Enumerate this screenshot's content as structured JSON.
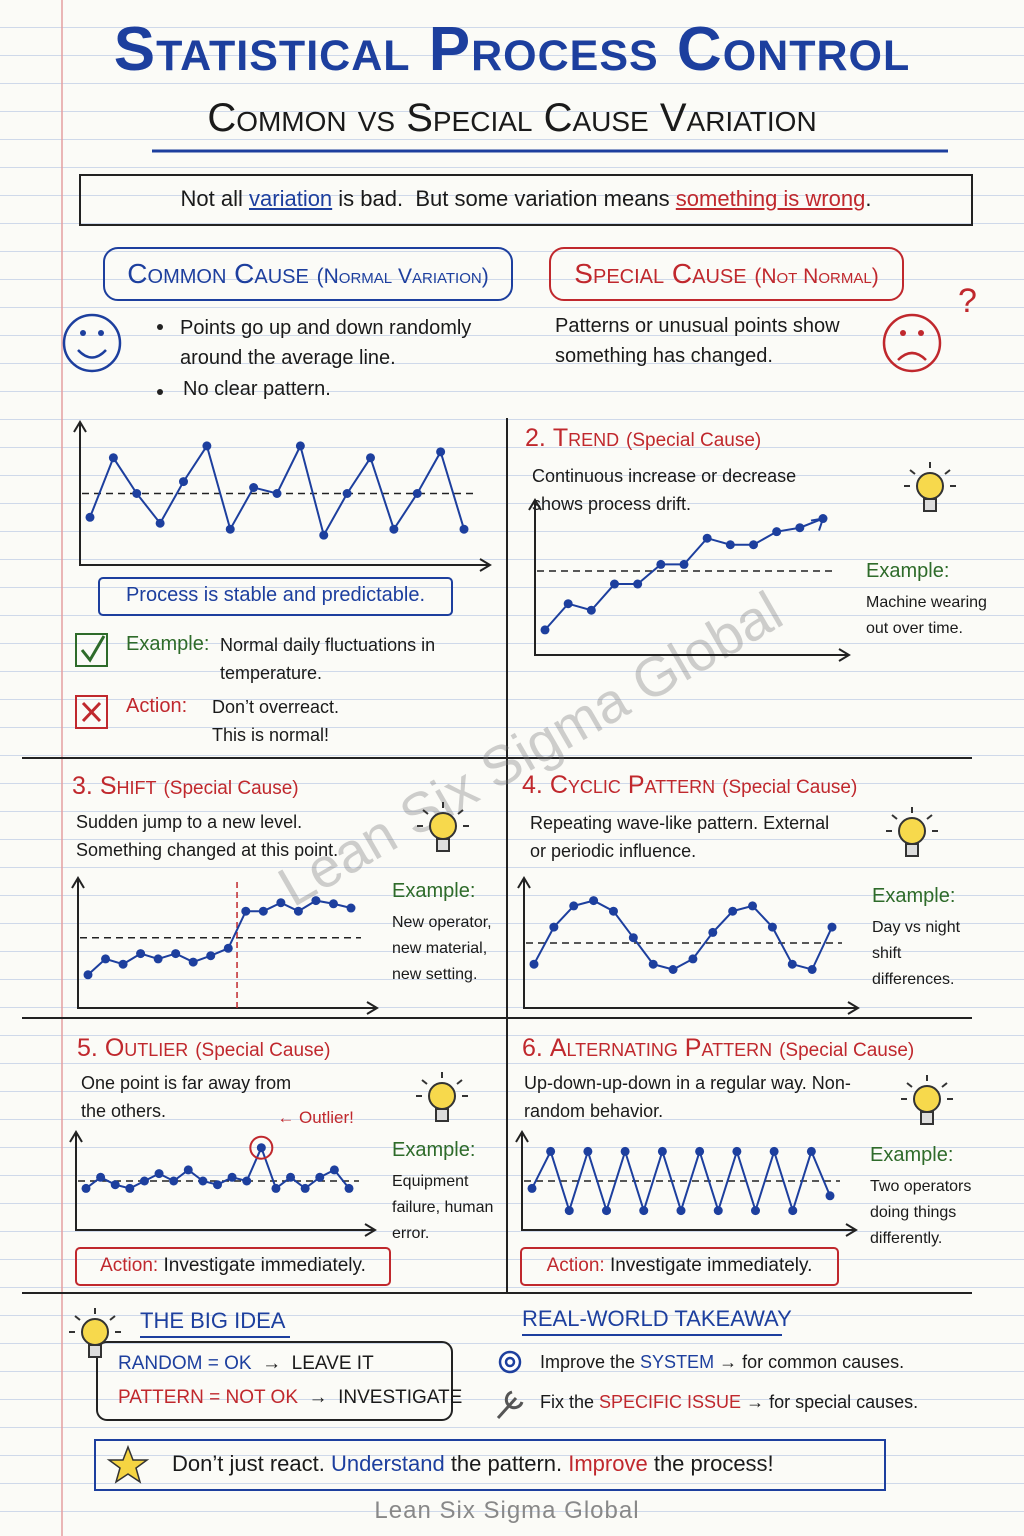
{
  "header": {
    "title": "Statistical Process Control",
    "subtitle": "Common vs Special Cause Variation"
  },
  "intro": [
    {
      "text": "Not all "
    },
    {
      "text": "variation",
      "color": "#1d3f9e",
      "underline": true
    },
    {
      "text": " is bad.  But some variation means "
    },
    {
      "text": "something is wrong",
      "color": "#c0282d",
      "underline": true
    },
    {
      "text": "."
    }
  ],
  "common_cause": {
    "heading": "Common Cause",
    "note": "(Normal Variation)",
    "bullets": [
      "Points go up and down randomly around the average line.",
      "No clear pattern."
    ],
    "chart": {
      "ylim": [
        0,
        10
      ],
      "average": 5,
      "values": [
        3,
        8,
        5,
        2.5,
        6,
        9,
        2,
        5.5,
        5,
        9,
        1.5,
        5,
        8,
        2,
        5,
        8.5,
        2
      ]
    },
    "caption": "Process is stable and predictable.",
    "example_label": "Example:",
    "example": "Normal daily fluctuations in temperature.",
    "action_label": "Action:",
    "action": "Don’t overreact. This is normal!"
  },
  "special_cause": {
    "heading": "Special Cause",
    "note": "(Not Normal)",
    "text": "Patterns or unusual points show something has changed."
  },
  "patterns": [
    {
      "number": "2.",
      "name": "Trend",
      "tag": "(Special Cause)",
      "description": "Continuous increase or decrease shows process drift.",
      "example_label": "Example:",
      "example": "Machine wearing out over time.",
      "chart": {
        "ylim": [
          0,
          10
        ],
        "average": 5.5,
        "values": [
          1,
          3,
          2.5,
          4.5,
          4.5,
          6,
          6,
          8,
          7.5,
          7.5,
          8.5,
          8.8,
          9.5
        ]
      }
    },
    {
      "number": "3.",
      "name": "Shift",
      "tag": "(Special Cause)",
      "description": "Sudden jump to a new level. Something changed at this point.",
      "example_label": "Example:",
      "example": "New operator, new material, new setting.",
      "chart": {
        "ylim": [
          0,
          10
        ],
        "average": 5.5,
        "change_point": 8.5,
        "values": [
          2,
          3.5,
          3,
          4,
          3.5,
          4,
          3.2,
          3.8,
          4.5,
          8,
          8,
          8.8,
          8,
          9,
          8.7,
          8.3
        ]
      }
    },
    {
      "number": "4.",
      "name": "Cyclic Pattern",
      "tag": "(Special Cause)",
      "description": "Repeating wave-like pattern. External or periodic influence.",
      "example_label": "Example:",
      "example": "Day vs night shift differences.",
      "chart": {
        "ylim": [
          0,
          10
        ],
        "average": 5,
        "values": [
          3,
          6.5,
          8.5,
          9,
          8,
          5.5,
          3,
          2.5,
          3.5,
          6,
          8,
          8.5,
          6.5,
          3,
          2.5,
          6.5
        ]
      }
    },
    {
      "number": "5.",
      "name": "Outlier",
      "tag": "(Special Cause)",
      "description": "One point is far away from the others.",
      "example_label": "Example:",
      "example": "Equipment failure, human error.",
      "chart": {
        "ylim": [
          0,
          10
        ],
        "average": 5,
        "outlier_index": 12,
        "values": [
          4,
          5.5,
          4.5,
          4,
          5,
          6,
          5,
          6.5,
          5,
          4.5,
          5.5,
          5,
          9.5,
          4,
          5.5,
          4,
          5.5,
          6.5,
          4
        ]
      },
      "outlier_label": "← Outlier!",
      "action_label": "Action:",
      "action": "Investigate immediately."
    },
    {
      "number": "6.",
      "name": "Alternating Pattern",
      "tag": "(Special Cause)",
      "description": "Up-down-up-down in a regular way. Non-random behavior.",
      "example_label": "Example:",
      "example": "Two operators doing things differently.",
      "chart": {
        "ylim": [
          0,
          10
        ],
        "average": 5,
        "values": [
          4,
          9,
          1,
          9,
          1,
          9,
          1,
          9,
          1,
          9,
          1,
          9,
          1,
          9,
          1,
          9,
          3
        ]
      },
      "action_label": "Action:",
      "action": "Investigate immediately."
    }
  ],
  "big_idea": {
    "title": "THE BIG IDEA",
    "lines": [
      [
        {
          "text": "RANDOM = OK",
          "color": "#1d3f9e"
        },
        {
          "text": "  →  LEAVE IT"
        }
      ],
      [
        {
          "text": "PATTERN = NOT OK",
          "color": "#c0282d"
        },
        {
          "text": "  →  INVESTIGATE"
        }
      ]
    ]
  },
  "takeaway": {
    "title": "REAL-WORLD TAKEAWAY",
    "items": [
      [
        {
          "text": "Improve the "
        },
        {
          "text": "SYSTEM",
          "color": "#1d3f9e"
        },
        {
          "text": " → for common causes."
        }
      ],
      [
        {
          "text": "Fix the "
        },
        {
          "text": "SPECIFIC ISSUE",
          "color": "#c0282d"
        },
        {
          "text": " → for special causes."
        }
      ]
    ]
  },
  "footer": [
    {
      "text": "Don’t just react. "
    },
    {
      "text": "Understand",
      "color": "#1d3f9e"
    },
    {
      "text": " the pattern. "
    },
    {
      "text": "Improve",
      "color": "#c0282d"
    },
    {
      "text": " the process!"
    }
  ],
  "watermark": "Lean Six Sigma Global",
  "credit": "Lean Six Sigma Global"
}
